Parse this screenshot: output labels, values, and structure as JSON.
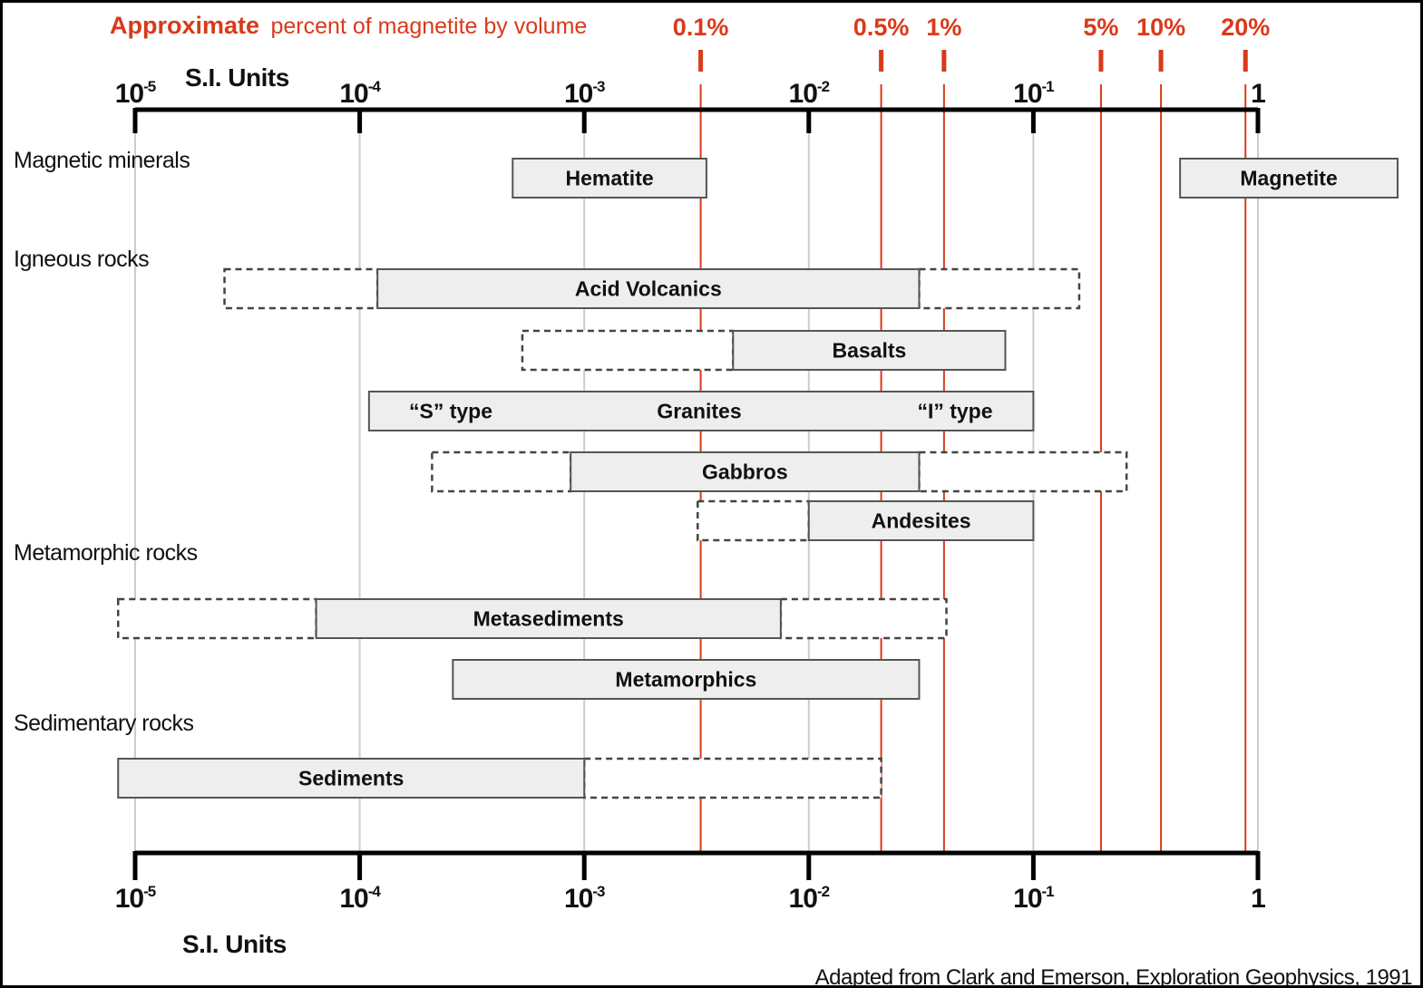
{
  "top_title": {
    "bold": "Approximate",
    "rest": "percent of magnetite by volume",
    "color": "#d93a1a"
  },
  "axis_name_top": "S.I. Units",
  "axis_name_bottom": "S.I. Units",
  "credit": "Adapted from Clark and Emerson, Exploration Geophysics, 1991",
  "colors": {
    "red": "#d93a1a",
    "bar_fill": "#eeeeee",
    "bar_stroke": "#555555",
    "grid": "#cccccc"
  },
  "chart_data": {
    "type": "range-bar",
    "x_scale": "log",
    "xlim": [
      1e-05,
      1
    ],
    "x_ticks": [
      {
        "value": 1e-05,
        "base": "10",
        "exp": "-5"
      },
      {
        "value": 0.0001,
        "base": "10",
        "exp": "-4"
      },
      {
        "value": 0.001,
        "base": "10",
        "exp": "-3"
      },
      {
        "value": 0.01,
        "base": "10",
        "exp": "-2"
      },
      {
        "value": 0.1,
        "base": "10",
        "exp": "-1"
      },
      {
        "value": 1,
        "base": "1",
        "exp": ""
      }
    ],
    "grid": true,
    "percent_markers": [
      {
        "label": "0.1%",
        "value": 0.0033
      },
      {
        "label": "0.5%",
        "value": 0.021
      },
      {
        "label": "1%",
        "value": 0.04
      },
      {
        "label": "5%",
        "value": 0.2
      },
      {
        "label": "10%",
        "value": 0.37
      },
      {
        "label": "20%",
        "value": 0.88
      }
    ],
    "groups": [
      {
        "name": "Magnetic minerals",
        "bars": [
          {
            "label": "Hematite",
            "solid": [
              0.00048,
              0.0035
            ]
          },
          {
            "label": "Magnetite",
            "solid": [
              0.45,
              4.2
            ]
          }
        ]
      },
      {
        "name": "Igneous rocks",
        "bars": [
          {
            "label": "Acid Volcanics",
            "solid": [
              0.00012,
              0.031
            ],
            "dashed_low": [
              2.5e-05,
              0.00012
            ],
            "dashed_high": [
              0.031,
              0.16
            ]
          },
          {
            "label": "Basalts",
            "solid": [
              0.0046,
              0.075
            ],
            "dashed_low": [
              0.00053,
              0.0046
            ]
          },
          {
            "label": "Granites",
            "solid": [
              0.00011,
              0.1
            ],
            "sublabels": [
              "“S” type",
              "“I” type"
            ]
          },
          {
            "label": "Gabbros",
            "solid": [
              0.00087,
              0.031
            ],
            "dashed_low": [
              0.00021,
              0.00087
            ],
            "dashed_high": [
              0.031,
              0.26
            ]
          },
          {
            "label": "Andesites",
            "solid": [
              0.01,
              0.1
            ],
            "dashed_low": [
              0.0032,
              0.01
            ]
          }
        ]
      },
      {
        "name": "Metamorphic rocks",
        "bars": [
          {
            "label": "Metasediments",
            "solid": [
              6.4e-05,
              0.0075
            ],
            "dashed_low": [
              8.4e-06,
              6.4e-05
            ],
            "dashed_high": [
              0.0075,
              0.041
            ]
          },
          {
            "label": "Metamorphics",
            "solid": [
              0.00026,
              0.031
            ]
          }
        ]
      },
      {
        "name": "Sedimentary rocks",
        "bars": [
          {
            "label": "Sediments",
            "solid": [
              8.4e-06,
              0.001
            ],
            "dashed_high": [
              0.001,
              0.021
            ]
          }
        ]
      }
    ]
  }
}
